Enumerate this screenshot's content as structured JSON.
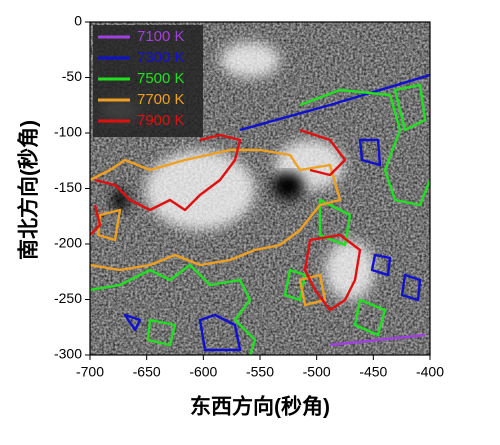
{
  "chart_data": {
    "type": "contour",
    "xlabel": "东西方向(秒角)",
    "ylabel": "南北方向(秒角)",
    "xlim": [
      -700,
      -400
    ],
    "xticks": [
      -700,
      -650,
      -600,
      -550,
      -500,
      -450,
      -400
    ],
    "ylim": [
      -300,
      0
    ],
    "yticks": [
      0,
      -50,
      -100,
      -150,
      -200,
      -250,
      -300
    ],
    "legend": "upper left",
    "series": [
      {
        "name": "7100 K",
        "color": "#a040e0"
      },
      {
        "name": "7300 K",
        "color": "#1010d0"
      },
      {
        "name": "7500 K",
        "color": "#20e020"
      },
      {
        "name": "7700 K",
        "color": "#f0a020"
      },
      {
        "name": "7900 K",
        "color": "#e01010"
      }
    ]
  }
}
